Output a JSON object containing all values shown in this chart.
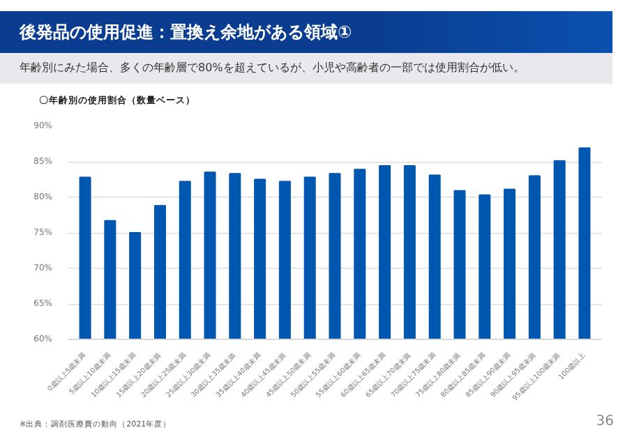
{
  "chart_data": {
    "type": "bar",
    "title": "後発品の使用促進：置換え余地がある領域①",
    "subtitle": "年齢別にみた場合、多くの年齢層で80%を超えているが、小児や高齢者の一部では使用割合が低い。",
    "annotations": [
      "〇年齢別の使用割合（数量ベース）",
      "※出典：調剤医療費の動向（2021年度）",
      "36"
    ],
    "categories": [
      "0歳以上5歳未満",
      "5歳以上10歳未満",
      "10歳以上15歳未満",
      "15歳以上20歳未満",
      "20歳以上25歳未満",
      "25歳以上30歳未満",
      "30歳以上35歳未満",
      "35歳以上40歳未満",
      "40歳以上45歳未満",
      "45歳以上50歳未満",
      "50歳以上55歳未満",
      "55歳以上60歳未満",
      "60歳以上65歳未満",
      "65歳以上70歳未満",
      "70歳以上75歳未満",
      "75歳以上80歳未満",
      "80歳以上85歳未満",
      "85歳以上90歳未満",
      "90歳以上95歳未満",
      "95歳以上100歳未満",
      "100歳以上"
    ],
    "values": [
      82.8,
      76.7,
      75.0,
      78.8,
      82.2,
      83.5,
      83.3,
      82.5,
      82.2,
      82.8,
      83.3,
      83.9,
      84.4,
      84.4,
      83.1,
      80.9,
      80.3,
      81.1,
      83.0,
      85.1,
      86.9
    ],
    "color": "#0057b0",
    "ylim": [
      60,
      90
    ],
    "yticks": [
      {
        "value": 60,
        "label": "60%"
      },
      {
        "value": 65,
        "label": "65%"
      },
      {
        "value": 70,
        "label": "70%"
      },
      {
        "value": 75,
        "label": "75%"
      },
      {
        "value": 80,
        "label": "80%"
      },
      {
        "value": 85,
        "label": "85%"
      },
      {
        "value": 90,
        "label": "90%"
      }
    ],
    "grid": "y"
  }
}
